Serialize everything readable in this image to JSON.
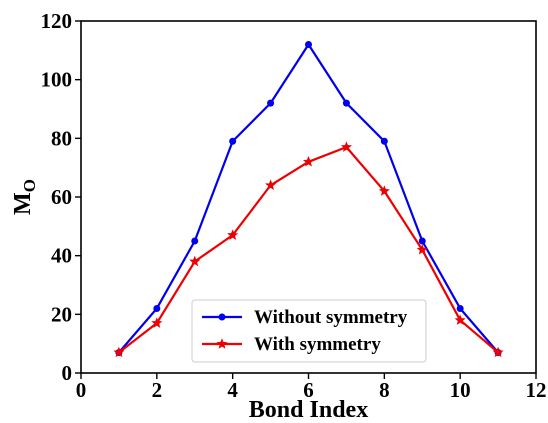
{
  "chart_data": {
    "type": "line",
    "title": "",
    "xlabel": "Bond Index",
    "ylabel_main": "M",
    "ylabel_sub": "O",
    "xlim": [
      0,
      12
    ],
    "ylim": [
      0,
      120
    ],
    "xticks": [
      0,
      2,
      4,
      6,
      8,
      10,
      12
    ],
    "yticks": [
      0,
      20,
      40,
      60,
      80,
      100,
      120
    ],
    "grid": false,
    "legend_position": "bottom-center",
    "series": [
      {
        "name": "Without symmetry",
        "color": "#0000ee",
        "marker": "circle",
        "x": [
          1,
          2,
          3,
          4,
          5,
          6,
          7,
          8,
          9,
          10,
          11
        ],
        "y": [
          7,
          22,
          45,
          79,
          92,
          112,
          92,
          79,
          45,
          22,
          7
        ]
      },
      {
        "name": "With symmetry",
        "color": "#ee0000",
        "marker": "star",
        "x": [
          1,
          2,
          3,
          4,
          5,
          6,
          7,
          8,
          9,
          10,
          11
        ],
        "y": [
          7,
          17,
          38,
          47,
          64,
          72,
          77,
          62,
          42,
          18,
          7
        ]
      }
    ]
  }
}
